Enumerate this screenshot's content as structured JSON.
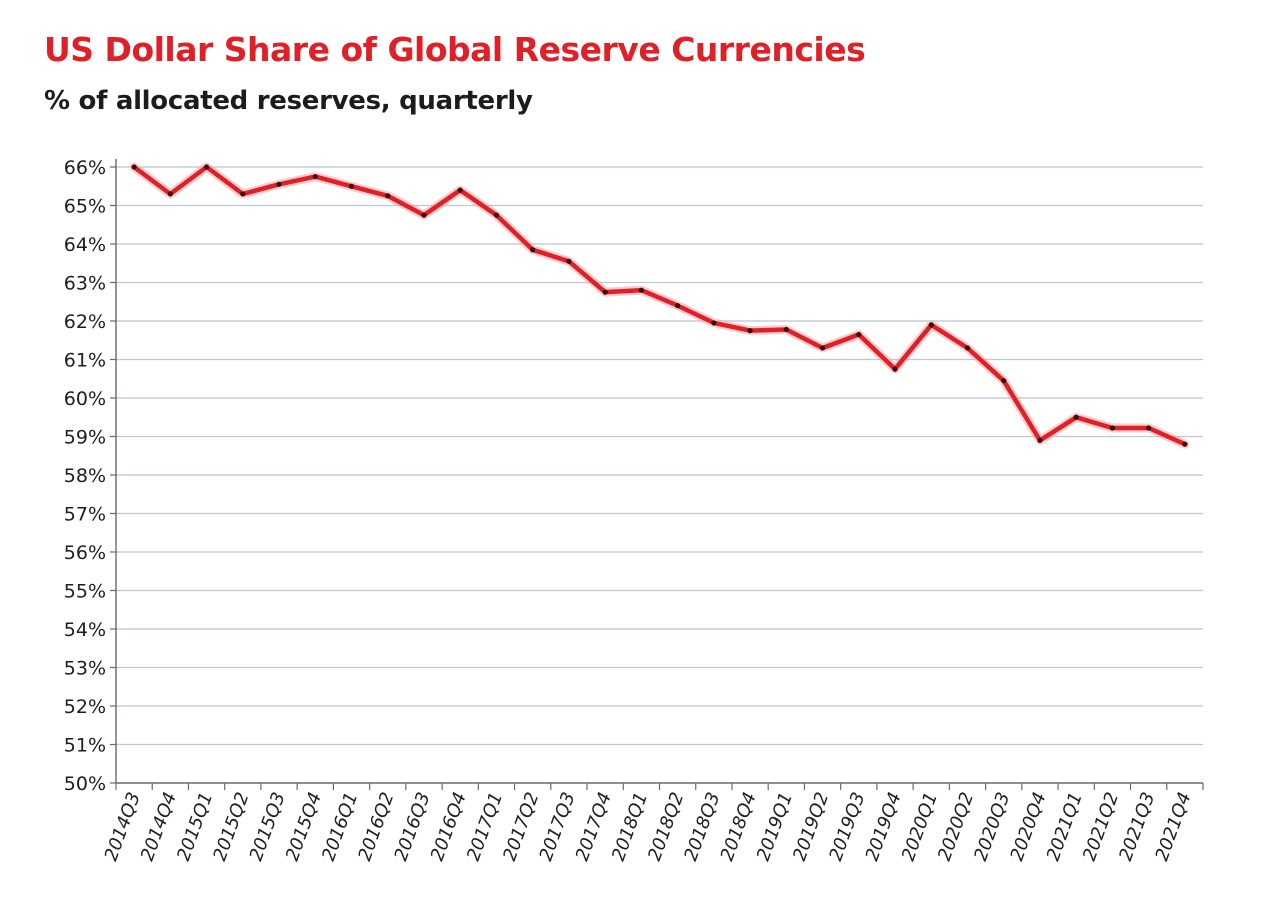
{
  "chart_data": {
    "type": "line",
    "title": "US Dollar Share of Global Reserve Currencies",
    "subtitle": "% of allocated reserves, quarterly",
    "xlabel": "",
    "ylabel": "",
    "ylim": [
      50,
      66
    ],
    "y_tick_step": 1,
    "y_tick_format": "%",
    "grid": true,
    "legend": "none",
    "categories": [
      "2014Q3",
      "2014Q4",
      "2015Q1",
      "2015Q2",
      "2015Q3",
      "2015Q4",
      "2016Q1",
      "2016Q2",
      "2016Q3",
      "2016Q4",
      "2017Q1",
      "2017Q2",
      "2017Q3",
      "2017Q4",
      "2018Q1",
      "2018Q2",
      "2018Q3",
      "2018Q4",
      "2019Q1",
      "2019Q2",
      "2019Q3",
      "2019Q4",
      "2020Q1",
      "2020Q2",
      "2020Q3",
      "2020Q4",
      "2021Q1",
      "2021Q2",
      "2021Q3",
      "2021Q4"
    ],
    "series": [
      {
        "values": [
          66.0,
          65.3,
          66.0,
          65.3,
          65.55,
          65.75,
          65.5,
          65.25,
          64.75,
          65.4,
          64.75,
          63.85,
          63.55,
          62.75,
          62.8,
          62.4,
          61.95,
          61.75,
          61.78,
          61.3,
          61.65,
          60.75,
          61.9,
          61.3,
          60.45,
          58.9,
          59.5,
          59.22,
          59.22,
          58.8
        ]
      }
    ]
  },
  "colors": {
    "line": "#e01f26",
    "line_shadow": "#f4a3a6",
    "marker": "#3a0a0a",
    "grid": "#b9c8d6",
    "axis": "#6a6a6a"
  }
}
